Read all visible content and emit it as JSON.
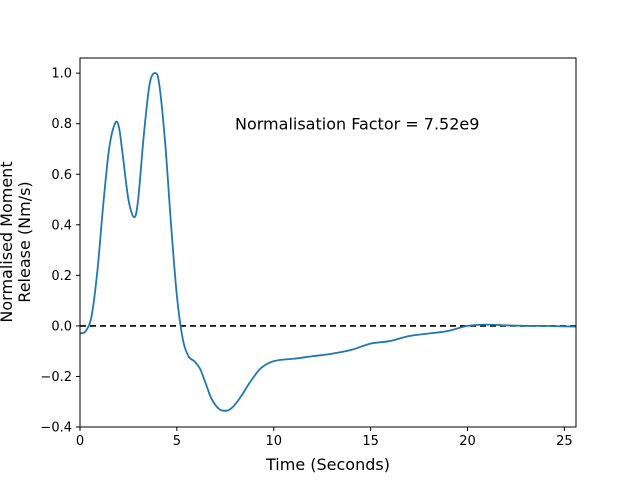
{
  "chart_data": {
    "type": "line",
    "title": "",
    "xlabel": "Time (Seconds)",
    "ylabel_lines": [
      "Normalised Moment",
      "Release (Nm/s)"
    ],
    "xlim": [
      0,
      25.6
    ],
    "ylim": [
      -0.4,
      1.06
    ],
    "x_ticks": [
      0,
      5,
      10,
      15,
      20,
      25
    ],
    "y_ticks": [
      -0.4,
      -0.2,
      0.0,
      0.2,
      0.4,
      0.6,
      0.8,
      1.0
    ],
    "x_tick_labels": [
      "0",
      "5",
      "10",
      "15",
      "20",
      "25"
    ],
    "y_tick_labels": [
      "−0.4",
      "−0.2",
      "0.0",
      "0.2",
      "0.4",
      "0.6",
      "0.8",
      "1.0"
    ],
    "grid": false,
    "annotation": {
      "text": "Normalisation Factor = 7.52e9",
      "x": 8.0,
      "y": 0.8
    },
    "reference_line": {
      "y": 0.0,
      "style": "dashed",
      "color": "#000000"
    },
    "series": [
      {
        "color": "#1f77b4",
        "x": [
          0,
          0.3,
          0.6,
          0.9,
          1.2,
          1.5,
          1.8,
          2.0,
          2.2,
          2.5,
          2.8,
          3.0,
          3.3,
          3.6,
          3.9,
          4.1,
          4.4,
          4.7,
          5.0,
          5.3,
          5.6,
          5.9,
          6.2,
          6.5,
          6.8,
          7.2,
          7.6,
          7.9,
          8.3,
          8.8,
          9.3,
          9.8,
          10.3,
          11.0,
          12.0,
          13.0,
          14.0,
          15.0,
          16.0,
          17.0,
          18.0,
          19.0,
          20.0,
          21.0,
          22.0,
          23.0,
          24.0,
          25.0,
          25.6
        ],
        "y": [
          -0.03,
          -0.02,
          0.04,
          0.22,
          0.48,
          0.7,
          0.8,
          0.79,
          0.68,
          0.5,
          0.43,
          0.5,
          0.76,
          0.96,
          1.0,
          0.95,
          0.72,
          0.4,
          0.12,
          -0.05,
          -0.12,
          -0.14,
          -0.17,
          -0.23,
          -0.29,
          -0.33,
          -0.335,
          -0.32,
          -0.28,
          -0.22,
          -0.17,
          -0.145,
          -0.135,
          -0.13,
          -0.12,
          -0.11,
          -0.095,
          -0.07,
          -0.06,
          -0.04,
          -0.03,
          -0.02,
          0.0,
          0.005,
          0.002,
          0.0,
          0.0,
          -0.002,
          -0.003
        ]
      }
    ]
  }
}
